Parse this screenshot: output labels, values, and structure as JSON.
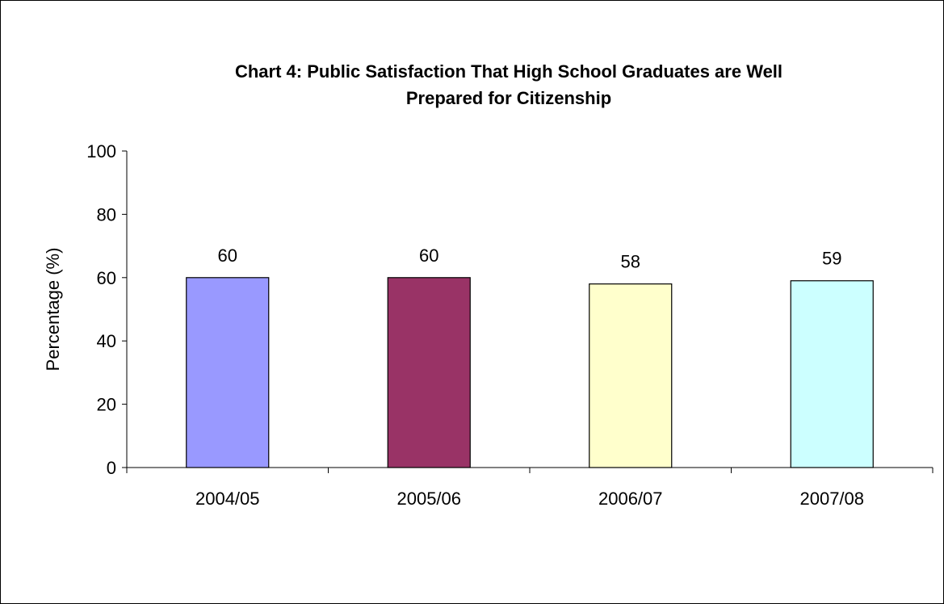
{
  "chart_data": {
    "type": "bar",
    "title": "Chart 4: Public Satisfaction That High School Graduates are Well\nPrepared for Citizenship",
    "xlabel": "",
    "ylabel": "Percentage (%)",
    "categories": [
      "2004/05",
      "2005/06",
      "2006/07",
      "2007/08"
    ],
    "values": [
      60,
      60,
      58,
      59
    ],
    "data_labels": [
      "60",
      "60",
      "58",
      "59"
    ],
    "colors": [
      "#9999ff",
      "#993366",
      "#ffffcc",
      "#ccffff"
    ],
    "ylim": [
      0,
      100
    ],
    "yticks": [
      0,
      20,
      40,
      60,
      80,
      100
    ],
    "ytick_labels": [
      "0",
      "20",
      "40",
      "60",
      "80",
      "100"
    ],
    "grid": false,
    "legend": "none"
  }
}
